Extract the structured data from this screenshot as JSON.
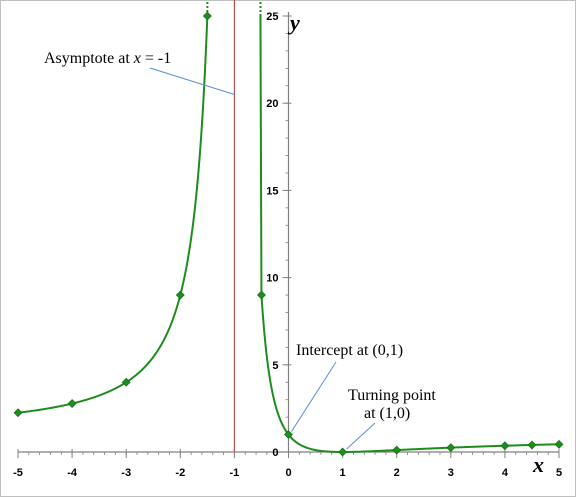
{
  "chart_data": {
    "type": "line",
    "title": "",
    "xlabel": "x",
    "ylabel": "y",
    "xlim": [
      -5,
      5
    ],
    "ylim": [
      0,
      25
    ],
    "x_ticks": [
      "-5",
      "-4",
      "-3",
      "-2",
      "-1",
      "0",
      "1",
      "2",
      "3",
      "4",
      "5"
    ],
    "y_ticks": [
      "0",
      "5",
      "10",
      "15",
      "20",
      "25"
    ],
    "grid": false,
    "legend": "none",
    "series": [
      {
        "color": "#1e8c1e",
        "marker": "diamond",
        "x": [
          -5,
          -4,
          -3,
          -2,
          -1.5,
          -0.5,
          0,
          1,
          2,
          3,
          4,
          4.5,
          5
        ],
        "y": [
          2.25,
          2.78,
          4.0,
          9.0,
          25.0,
          9.0,
          1.0,
          0.0,
          0.11,
          0.25,
          0.36,
          0.4,
          0.44
        ]
      }
    ],
    "asymptote": {
      "x": -1,
      "color": "#c0504d"
    },
    "annotations": [
      {
        "text": "Asymptote at x = -1",
        "x": -1.0,
        "y": 20.5
      },
      {
        "text": "Intercept at (0,1)",
        "x": 0.0,
        "y": 1.0
      },
      {
        "text": "Turning point",
        "text2": "at (1,0)",
        "x": 1.0,
        "y": 0.0
      }
    ]
  }
}
